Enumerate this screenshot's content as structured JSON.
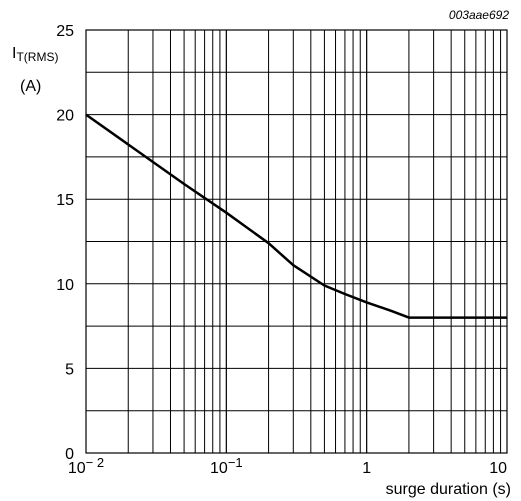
{
  "chart_data": {
    "type": "line",
    "reference": "003aae692",
    "ylabel": "I",
    "ylabel_sub": "T(RMS)",
    "yunit": "(A)",
    "xlabel": "surge duration (s)",
    "xscale": "log",
    "xlim": [
      0.01,
      10
    ],
    "ylim": [
      0,
      25
    ],
    "grid": true,
    "y_ticks": [
      0,
      5,
      10,
      15,
      20,
      25
    ],
    "x_ticks": [
      {
        "value": 0.01,
        "base": "10",
        "exp": "− 2"
      },
      {
        "value": 0.1,
        "base": "10",
        "exp": "−1"
      },
      {
        "value": 1,
        "base": "1",
        "exp": ""
      },
      {
        "value": 10,
        "base": "10",
        "exp": ""
      }
    ],
    "series": [
      {
        "x": [
          0.01,
          0.05,
          0.1,
          0.2,
          0.3,
          0.5,
          0.7,
          1.0,
          1.5,
          2.0,
          10
        ],
        "y": [
          20.0,
          15.9,
          14.2,
          12.4,
          11.1,
          9.9,
          9.4,
          8.9,
          8.4,
          8.0,
          8.0
        ]
      }
    ]
  }
}
